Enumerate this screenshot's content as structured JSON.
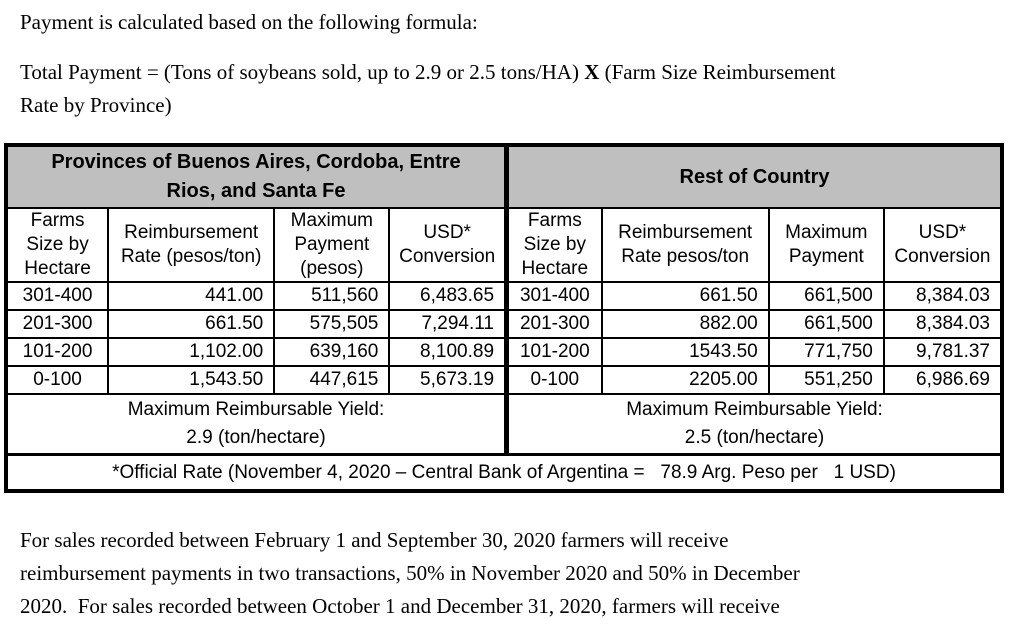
{
  "intro": {
    "text": "Payment is calculated based on the following formula:"
  },
  "formula": {
    "part1": "Total Payment = (Tons of soybeans sold, up to 2.9 or 2.5 tons/HA) ",
    "operator": "X",
    "part2": " (Farm Size Reimbursement",
    "part3": "Rate by Province)"
  },
  "table": {
    "header_bg": "#bfbfbf",
    "border_color": "#000000",
    "left": {
      "title_lines": [
        "Provinces of Buenos Aires, Cordoba, Entre",
        "Rios, and Santa Fe"
      ],
      "col_headers": [
        [
          "Farms",
          "Size by",
          "Hectare"
        ],
        [
          "Reimbursement",
          "Rate (pesos/ton)"
        ],
        [
          "Maximum",
          "Payment",
          "(pesos)"
        ],
        [
          "USD*",
          "Conversion"
        ]
      ],
      "rows": [
        [
          "301-400",
          "441.00",
          "511,560",
          "6,483.65"
        ],
        [
          "201-300",
          "661.50",
          "575,505",
          "7,294.11"
        ],
        [
          "101-200",
          "1,102.00",
          "639,160",
          "8,100.89"
        ],
        [
          "0-100",
          "1,543.50",
          "447,615",
          "5,673.19"
        ]
      ],
      "yield_lines": [
        "Maximum Reimbursable Yield:",
        "2.9 (ton/hectare)"
      ]
    },
    "right": {
      "title_lines": [
        "Rest of Country"
      ],
      "col_headers": [
        [
          "Farms",
          "Size by",
          "Hectare"
        ],
        [
          "Reimbursement",
          "Rate pesos/ton"
        ],
        [
          "Maximum",
          "Payment"
        ],
        [
          "USD*",
          "Conversion"
        ]
      ],
      "rows": [
        [
          "301-400",
          "661.50",
          "661,500",
          "8,384.03"
        ],
        [
          "201-300",
          "882.00",
          "661,500",
          "8,384.03"
        ],
        [
          "101-200",
          "1543.50",
          "771,750",
          "9,781.37"
        ],
        [
          "0-100",
          "2205.00",
          "551,250",
          "6,986.69"
        ]
      ],
      "yield_lines": [
        "Maximum Reimbursable Yield:",
        "2.5 (ton/hectare)"
      ]
    },
    "footnote": "*Official Rate (November 4, 2020 – Central Bank of Argentina =   78.9 Arg. Peso per   1 USD)"
  },
  "closing": {
    "lines": [
      "For sales recorded between February 1 and September 30, 2020 farmers will receive",
      "reimbursement payments in two transactions, 50% in November 2020 and 50% in December",
      "2020.  For sales recorded between October 1 and December 31, 2020, farmers will receive"
    ]
  }
}
